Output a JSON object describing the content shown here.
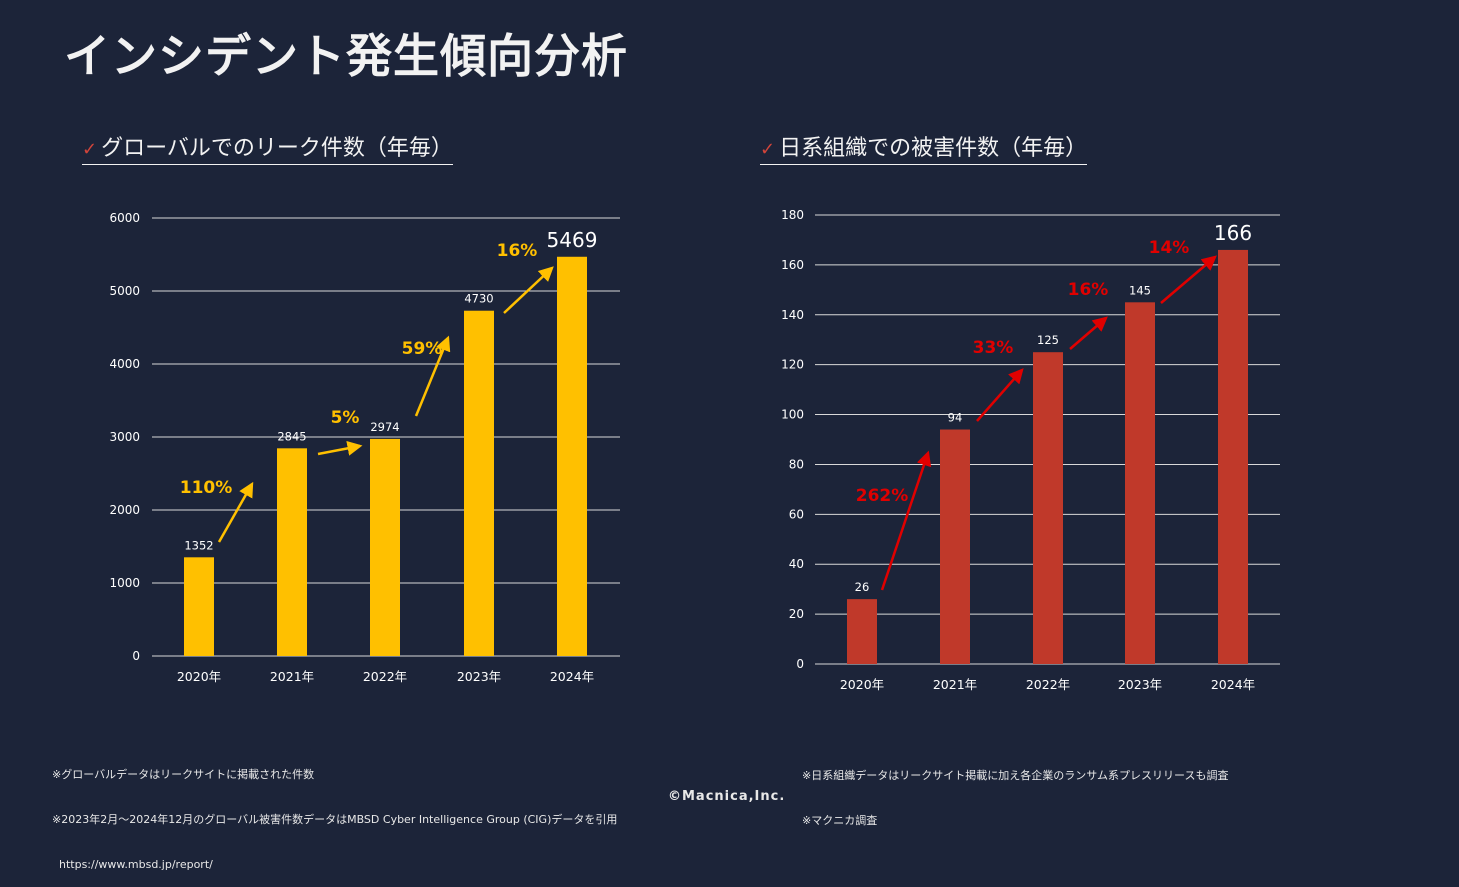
{
  "title": "インシデント発生傾向分析",
  "copyright": "©Macnica,Inc.",
  "chart_data": [
    {
      "type": "bar",
      "title": "グローバルでのリーク件数（年毎）",
      "check_icon": "checkmark-icon",
      "categories": [
        "2020年",
        "2021年",
        "2022年",
        "2023年",
        "2024年"
      ],
      "values": [
        1352,
        2845,
        2974,
        4730,
        5469
      ],
      "growth_labels": [
        "110%",
        "5%",
        "59%",
        "16%"
      ],
      "ylim": [
        0,
        6000
      ],
      "yticks": [
        "0",
        "1000",
        "2000",
        "3000",
        "4000",
        "5000",
        "6000"
      ],
      "grid": true,
      "bar_color": "#FFC000",
      "growth_color": "#FFC000",
      "notes": [
        "※グローバルデータはリークサイトに掲載された件数",
        "※2023年2月～2024年12月のグローバル被害件数データはMBSD Cyber Intelligence Group (CIG)データを引用",
        "  https://www.mbsd.jp/report/"
      ]
    },
    {
      "type": "bar",
      "title": "日系組織での被害件数（年毎）",
      "check_icon": "checkmark-icon",
      "categories": [
        "2020年",
        "2021年",
        "2022年",
        "2023年",
        "2024年"
      ],
      "values": [
        26,
        94,
        125,
        145,
        166
      ],
      "growth_labels": [
        "262%",
        "33%",
        "16%",
        "14%"
      ],
      "ylim": [
        0,
        180
      ],
      "yticks": [
        "0",
        "20",
        "40",
        "60",
        "80",
        "100",
        "120",
        "140",
        "160",
        "180"
      ],
      "grid": true,
      "bar_color": "#C0392A",
      "growth_color": "#E00000",
      "notes": [
        "※日系組織データはリークサイト掲載に加え各企業のランサム系プレスリリースも調査",
        "※マクニカ調査"
      ]
    }
  ]
}
